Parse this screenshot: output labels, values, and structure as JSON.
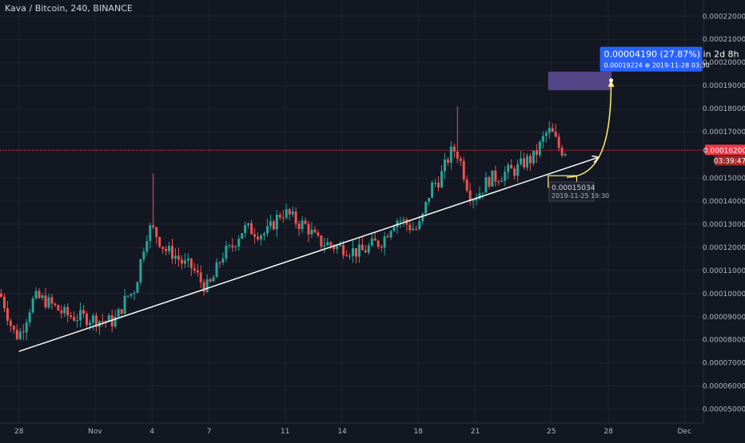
{
  "header": {
    "title": "Kava / Bitcoin, 240, BINANCE"
  },
  "price_axis": {
    "labels": [
      "0.00022000",
      "0.00021000",
      "0.00020000",
      "0.00019000",
      "0.00018000",
      "0.00017000",
      "0.00015000",
      "0.00014000",
      "0.00013000",
      "0.00012000",
      "0.00011000",
      "0.00010000",
      "0.00009000",
      "0.00008000",
      "0.00007000",
      "0.00006000",
      "0.00005000"
    ],
    "last_price": "0.00016200",
    "countdown": "03:39:47"
  },
  "time_axis": {
    "labels": [
      "28",
      "Nov",
      "4",
      "7",
      "11",
      "14",
      "18",
      "21",
      "25",
      "28",
      "Dec"
    ]
  },
  "projection": {
    "main": "0.00004190 (27.87%) in 2d 8h",
    "sub": "0.00019224 ⊕ 2019-11-28  03:30"
  },
  "entry_box": {
    "price": "0.00015034",
    "date": "2019-11-25 19:30"
  },
  "colors": {
    "background": "#131722",
    "up": "#26a69a",
    "down": "#ef5350",
    "trendline": "#ffffff",
    "projection_curve": "#fff176",
    "target_zone": "#5e4e9a",
    "callout": "#2962ff",
    "last_price": "#f23645"
  },
  "chart_data": {
    "type": "candlestick",
    "symbol": "Kava / Bitcoin",
    "interval": "240",
    "exchange": "BINANCE",
    "x_range": [
      "2019-10-27",
      "2019-12-03"
    ],
    "y_range": [
      4.4e-05,
      0.000227
    ],
    "anchors": [
      {
        "x": "2019-10-27",
        "y": 0.0001
      },
      {
        "x": "2019-10-28",
        "y": 8.2e-05
      },
      {
        "x": "2019-10-29",
        "y": 9.8e-05
      },
      {
        "x": "2019-10-31",
        "y": 9e-05
      },
      {
        "x": "2019-11-02",
        "y": 8.8e-05
      },
      {
        "x": "2019-11-03",
        "y": 0.0001
      },
      {
        "x": "2019-11-04",
        "y": 0.000128
      },
      {
        "x": "2019-11-05",
        "y": 0.000118
      },
      {
        "x": "2019-11-06",
        "y": 0.000112
      },
      {
        "x": "2019-11-07",
        "y": 0.000103
      },
      {
        "x": "2019-11-08",
        "y": 0.000118
      },
      {
        "x": "2019-11-09",
        "y": 0.000128
      },
      {
        "x": "2019-11-10",
        "y": 0.000126
      },
      {
        "x": "2019-11-11",
        "y": 0.000135
      },
      {
        "x": "2019-11-12",
        "y": 0.00013
      },
      {
        "x": "2019-11-13",
        "y": 0.000122
      },
      {
        "x": "2019-11-14",
        "y": 0.00012
      },
      {
        "x": "2019-11-15",
        "y": 0.000118
      },
      {
        "x": "2019-11-16",
        "y": 0.000122
      },
      {
        "x": "2019-11-17",
        "y": 0.000132
      },
      {
        "x": "2019-11-18",
        "y": 0.000128
      },
      {
        "x": "2019-11-19",
        "y": 0.000148
      },
      {
        "x": "2019-11-20",
        "y": 0.000162
      },
      {
        "x": "2019-11-21",
        "y": 0.000142
      },
      {
        "x": "2019-11-22",
        "y": 0.00015
      },
      {
        "x": "2019-11-23",
        "y": 0.000153
      },
      {
        "x": "2019-11-24",
        "y": 0.000158
      },
      {
        "x": "2019-11-25",
        "y": 0.00017
      },
      {
        "x": "2019-11-25T16:00",
        "y": 0.000162
      }
    ],
    "trendline": {
      "start": {
        "x": "2019-10-28",
        "y": 7.5e-05
      },
      "end": {
        "x": "2019-11-27T12:00",
        "y": 0.000159
      }
    },
    "projection": {
      "start": {
        "x": "2019-11-25T19:30",
        "y": 0.00015034
      },
      "end": {
        "x": "2019-11-28T03:30",
        "y": 0.00019224
      }
    },
    "target_zone": {
      "x_from": "2019-11-24T20:00",
      "x_to": "2019-11-28T04:00",
      "y_from": 0.000188,
      "y_to": 0.000196
    },
    "entry_zone": {
      "x_from": "2019-11-24T20:00",
      "x_to": "2019-11-26T08:00",
      "y_from": 0.000146,
      "y_to": 0.000151
    },
    "spikes": [
      {
        "x": "2019-11-04",
        "high": 0.000152
      },
      {
        "x": "2019-11-20",
        "high": 0.000181
      }
    ]
  }
}
